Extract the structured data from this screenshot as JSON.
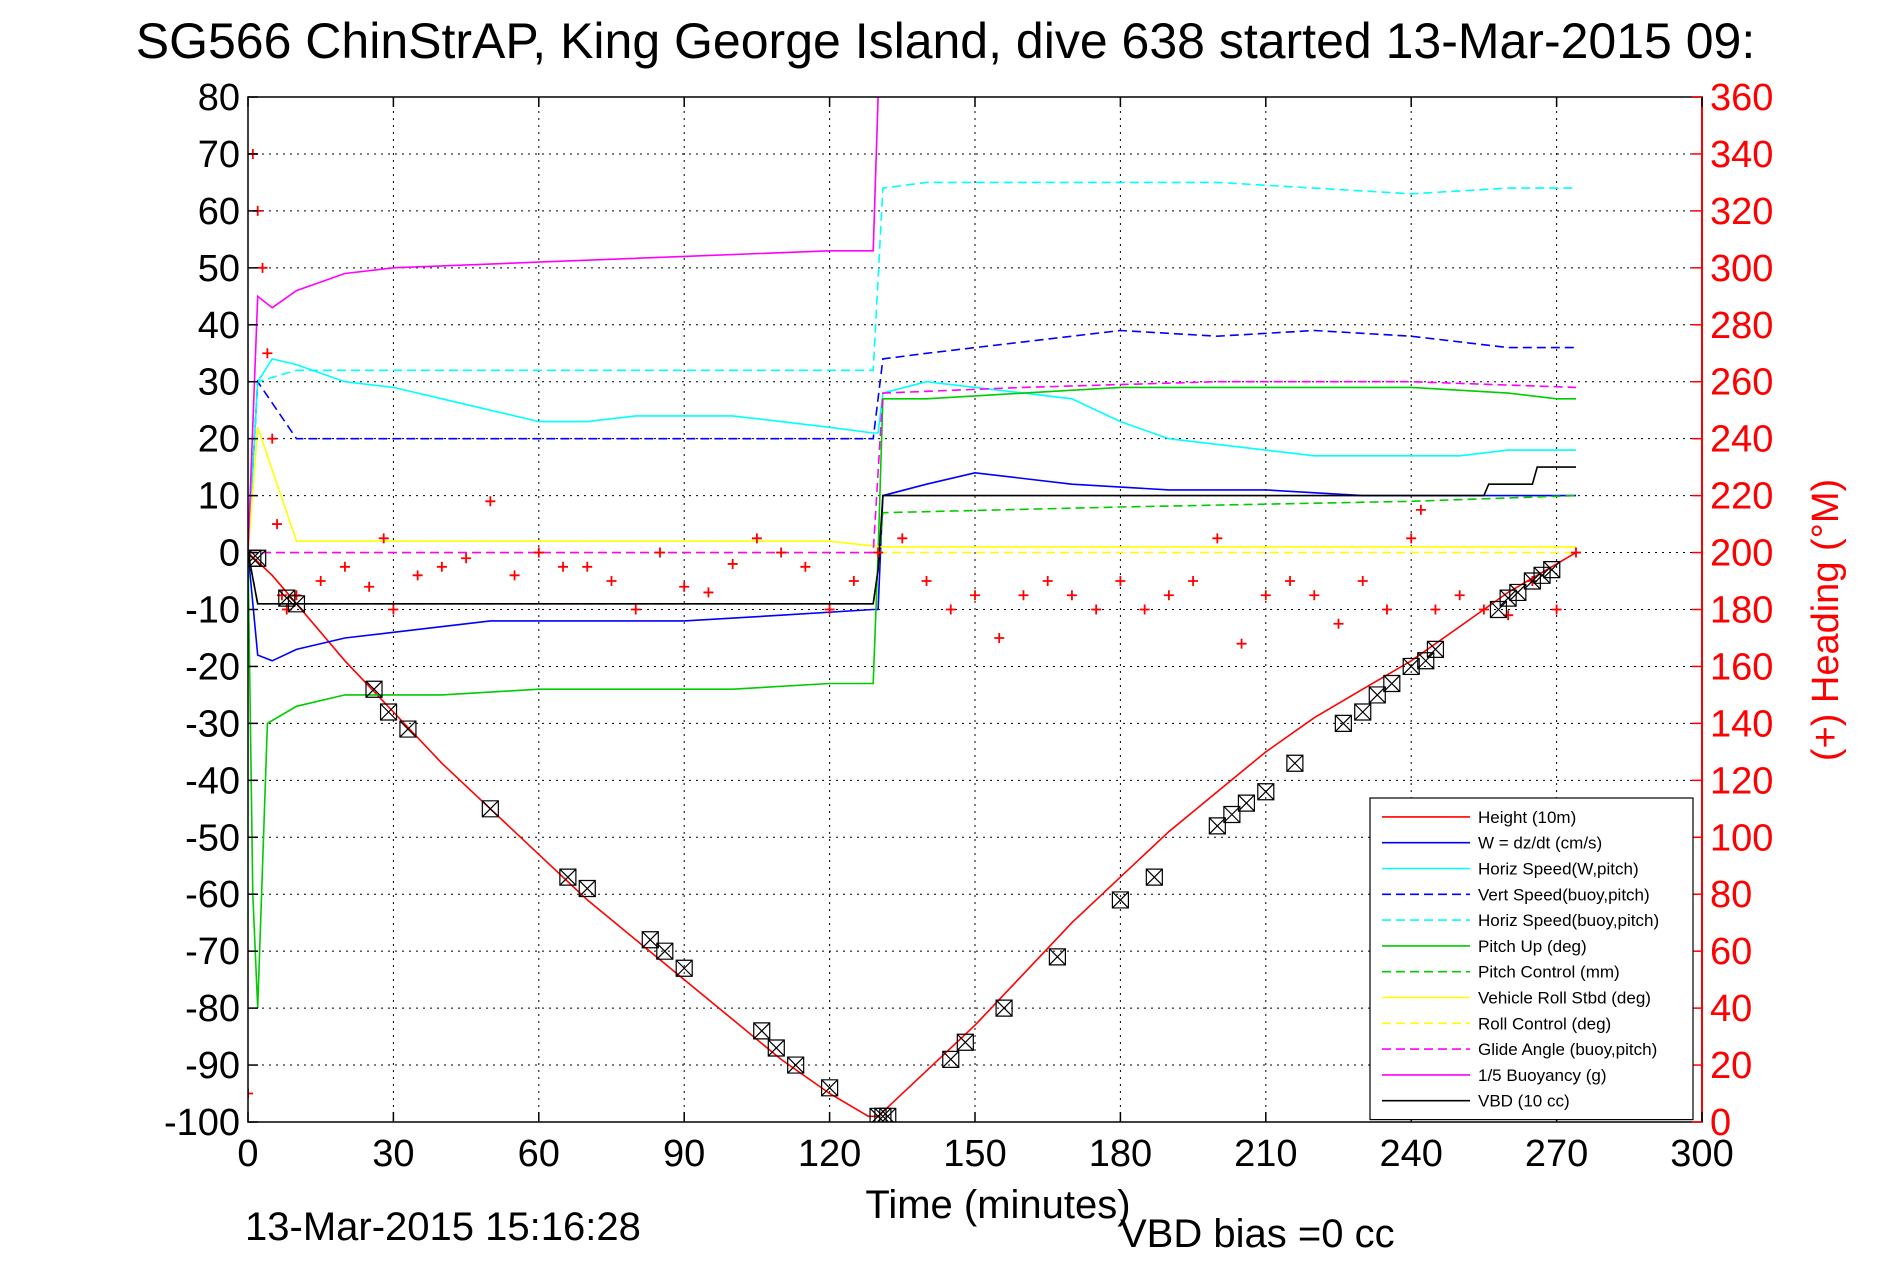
{
  "title": "SG566 ChinStrAP, King George Island, dive 638 started 13-Mar-2015 09:",
  "timestamp": "13-Mar-2015 15:16:28",
  "vbd_bias": "VBD bias =0 cc",
  "chart_data": {
    "type": "line",
    "xlabel": "Time (minutes)",
    "ylabel_right": "(+) Heading (°M)",
    "xlim": [
      0,
      300
    ],
    "ylim": [
      -100,
      80
    ],
    "ylim_right": [
      0,
      360
    ],
    "x_ticks": [
      0,
      30,
      60,
      90,
      120,
      150,
      180,
      210,
      240,
      270,
      300
    ],
    "y_ticks": [
      80,
      70,
      60,
      50,
      40,
      30,
      20,
      10,
      0,
      -10,
      -20,
      -30,
      -40,
      -50,
      -60,
      -70,
      -80,
      -90,
      -100
    ],
    "y_ticks_right": [
      360,
      340,
      320,
      300,
      280,
      260,
      240,
      220,
      200,
      180,
      160,
      140,
      120,
      100,
      80,
      60,
      40,
      20,
      0
    ],
    "grid": true,
    "legend_position": "bottom-right",
    "colors": {
      "axis_right": "#ff0000"
    },
    "series": [
      {
        "name": "Height (10m)",
        "color": "#ff0000",
        "dash": "solid",
        "x": [
          0,
          5,
          10,
          20,
          30,
          40,
          50,
          60,
          70,
          80,
          90,
          100,
          110,
          120,
          128,
          130,
          140,
          150,
          160,
          170,
          180,
          190,
          200,
          210,
          220,
          230,
          240,
          250,
          260,
          270,
          274
        ],
        "y": [
          0,
          -4,
          -9,
          -19,
          -28,
          -37,
          -45,
          -53,
          -61,
          -68,
          -75,
          -82,
          -89,
          -95,
          -99,
          -99,
          -91,
          -83,
          -74,
          -65,
          -57,
          -49,
          -42,
          -35,
          -29,
          -24,
          -19,
          -13,
          -7,
          -2,
          0
        ]
      },
      {
        "name": "W = dz/dt (cm/s)",
        "color": "#0000ff",
        "dash": "solid",
        "x": [
          0,
          2,
          5,
          10,
          20,
          30,
          50,
          70,
          90,
          110,
          129,
          130,
          131,
          140,
          150,
          170,
          190,
          210,
          230,
          250,
          270,
          274
        ],
        "y": [
          0,
          -18,
          -19,
          -17,
          -15,
          -14,
          -12,
          -12,
          -12,
          -11,
          -10,
          -10,
          10,
          12,
          14,
          12,
          11,
          11,
          10,
          10,
          10,
          10
        ]
      },
      {
        "name": "Horiz Speed(W,pitch)",
        "color": "#00ffff",
        "dash": "solid",
        "x": [
          0,
          2,
          5,
          10,
          20,
          30,
          40,
          50,
          60,
          70,
          80,
          90,
          100,
          110,
          120,
          129,
          130,
          131,
          140,
          150,
          160,
          170,
          180,
          190,
          200,
          210,
          220,
          230,
          240,
          250,
          260,
          270,
          274
        ],
        "y": [
          0,
          30,
          34,
          33,
          30,
          29,
          27,
          25,
          23,
          23,
          24,
          24,
          24,
          23,
          22,
          21,
          21,
          28,
          30,
          29,
          28,
          27,
          23,
          20,
          19,
          18,
          17,
          17,
          17,
          17,
          18,
          18,
          18
        ]
      },
      {
        "name": "Vert Speed(buoy,pitch)",
        "color": "#0000ff",
        "dash": "dashed",
        "x": [
          0,
          2,
          10,
          50,
          100,
          129,
          131,
          140,
          160,
          180,
          200,
          220,
          240,
          260,
          270,
          274
        ],
        "y": [
          0,
          30,
          20,
          20,
          20,
          20,
          34,
          35,
          37,
          39,
          38,
          39,
          38,
          36,
          36,
          36
        ]
      },
      {
        "name": "Horiz Speed(buoy,pitch)",
        "color": "#00ffff",
        "dash": "dashed",
        "x": [
          0,
          2,
          10,
          50,
          100,
          129,
          131,
          140,
          160,
          180,
          200,
          220,
          240,
          260,
          270,
          274
        ],
        "y": [
          0,
          30,
          32,
          32,
          32,
          32,
          64,
          65,
          65,
          65,
          65,
          64,
          63,
          64,
          64,
          64
        ]
      },
      {
        "name": "Pitch Up (deg)",
        "color": "#00cc00",
        "dash": "solid",
        "x": [
          0,
          1,
          2,
          4,
          10,
          20,
          40,
          60,
          80,
          100,
          120,
          128,
          129,
          130,
          131,
          140,
          160,
          180,
          200,
          220,
          240,
          260,
          270,
          274
        ],
        "y": [
          0,
          -60,
          -80,
          -30,
          -27,
          -25,
          -25,
          -24,
          -24,
          -24,
          -23,
          -23,
          -23,
          0,
          27,
          27,
          28,
          29,
          29,
          29,
          29,
          28,
          27,
          27
        ]
      },
      {
        "name": "Pitch Control (mm)",
        "color": "#00cc00",
        "dash": "dashed",
        "x": [
          0,
          2,
          10,
          60,
          129,
          130,
          131,
          180,
          240,
          274
        ],
        "y": [
          0,
          -9,
          -9,
          -9,
          -9,
          -3,
          7,
          8,
          9,
          10
        ]
      },
      {
        "name": "Vehicle Roll Stbd (deg)",
        "color": "#ffff00",
        "dash": "solid",
        "x": [
          0,
          2,
          10,
          40,
          80,
          120,
          131,
          160,
          200,
          240,
          270,
          274
        ],
        "y": [
          0,
          22,
          2,
          2,
          2,
          2,
          1,
          1,
          1,
          1,
          1,
          1
        ]
      },
      {
        "name": "Roll Control (deg)",
        "color": "#ffff00",
        "dash": "dashed",
        "x": [
          0,
          10,
          60,
          120,
          131,
          180,
          240,
          274
        ],
        "y": [
          0,
          0,
          0,
          0,
          0,
          0,
          0,
          0
        ]
      },
      {
        "name": "Glide Angle (buoy,pitch)",
        "color": "#ff00ff",
        "dash": "dashed",
        "x": [
          0,
          10,
          60,
          129,
          131,
          160,
          200,
          240,
          274
        ],
        "y": [
          0,
          0,
          0,
          0,
          28,
          29,
          30,
          30,
          29
        ]
      },
      {
        "name": "1/5 Buoyancy (g)",
        "color": "#ff00ff",
        "dash": "solid",
        "x": [
          0,
          2,
          5,
          10,
          20,
          30,
          60,
          90,
          120,
          129,
          130
        ],
        "y": [
          0,
          45,
          43,
          46,
          49,
          50,
          51,
          52,
          53,
          53,
          80
        ]
      },
      {
        "name": "VBD (10 cc)",
        "color": "#000000",
        "dash": "solid",
        "x": [
          0,
          2,
          10,
          60,
          129,
          130,
          131,
          160,
          220,
          255,
          256,
          265,
          266,
          274
        ],
        "y": [
          0,
          -9,
          -9,
          -9,
          -9,
          -3,
          10,
          10,
          10,
          10,
          12,
          12,
          15,
          15
        ]
      }
    ],
    "heading": {
      "name": "Heading",
      "color": "#ff0000",
      "marker": "+",
      "axis": "right",
      "x": [
        0,
        1,
        2,
        3,
        4,
        5,
        6,
        7,
        8,
        10,
        15,
        20,
        25,
        28,
        30,
        35,
        40,
        45,
        50,
        55,
        60,
        65,
        70,
        75,
        80,
        85,
        90,
        95,
        100,
        105,
        110,
        115,
        120,
        125,
        130,
        135,
        140,
        145,
        150,
        155,
        160,
        165,
        170,
        175,
        180,
        185,
        190,
        195,
        200,
        205,
        210,
        215,
        220,
        225,
        230,
        235,
        240,
        242,
        245,
        250,
        255,
        260,
        265,
        270,
        274
      ],
      "y": [
        10,
        340,
        320,
        300,
        270,
        240,
        210,
        185,
        180,
        185,
        190,
        195,
        188,
        205,
        180,
        192,
        195,
        198,
        218,
        192,
        200,
        195,
        195,
        190,
        180,
        200,
        188,
        186,
        196,
        205,
        200,
        195,
        180,
        190,
        200,
        205,
        190,
        180,
        185,
        170,
        185,
        190,
        185,
        180,
        190,
        180,
        185,
        190,
        205,
        168,
        185,
        190,
        185,
        175,
        190,
        180,
        205,
        215,
        180,
        185,
        180,
        178,
        190,
        180,
        200
      ]
    },
    "markers": {
      "name": "Height samples",
      "color": "#000000",
      "x": [
        1,
        2,
        8,
        10,
        26,
        29,
        33,
        50,
        66,
        70,
        83,
        86,
        90,
        106,
        109,
        113,
        120,
        130,
        131,
        132,
        145,
        148,
        156,
        167,
        180,
        187,
        200,
        203,
        206,
        210,
        216,
        226,
        230,
        233,
        236,
        240,
        243,
        245,
        258,
        260,
        262,
        265,
        267,
        269
      ],
      "y": [
        -1,
        -1,
        -8,
        -9,
        -24,
        -28,
        -31,
        -45,
        -57,
        -59,
        -68,
        -70,
        -73,
        -84,
        -87,
        -90,
        -94,
        -99,
        -99,
        -99,
        -89,
        -86,
        -80,
        -71,
        -61,
        -57,
        -48,
        -46,
        -44,
        -42,
        -37,
        -30,
        -28,
        -25,
        -23,
        -20,
        -19,
        -17,
        -10,
        -8,
        -7,
        -5,
        -4,
        -3
      ]
    }
  }
}
